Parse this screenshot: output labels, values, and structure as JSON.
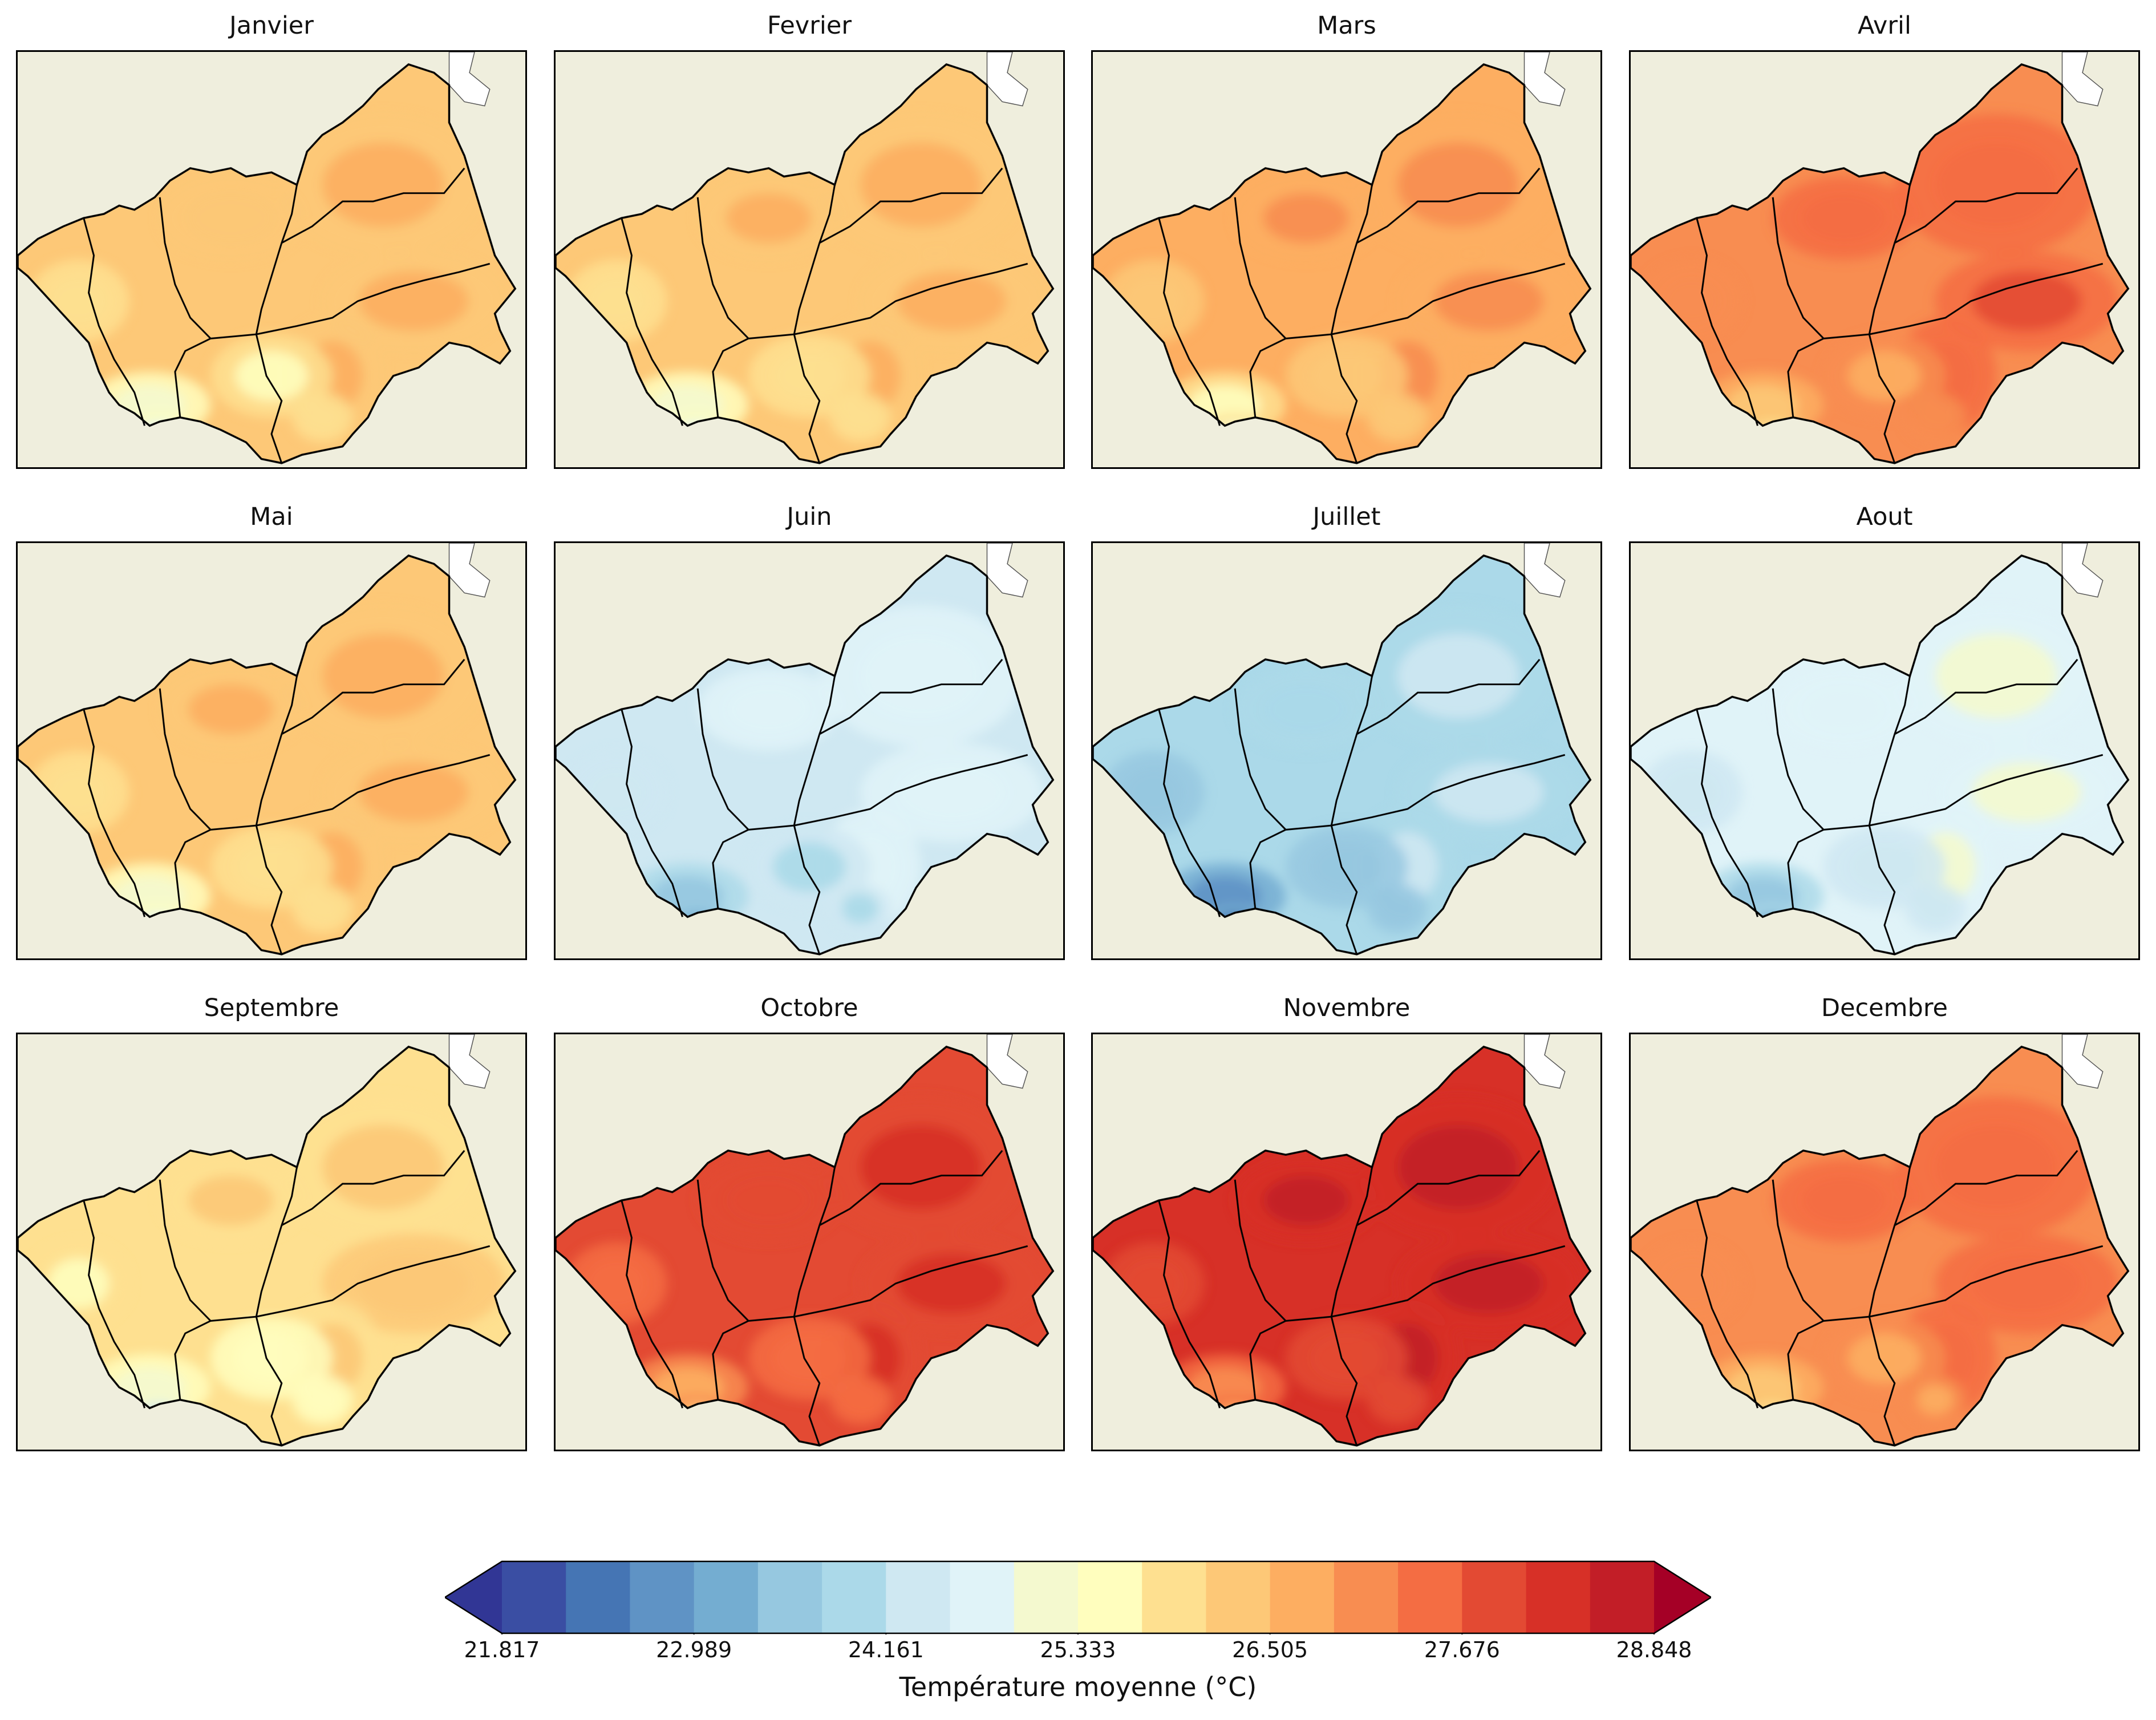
{
  "figure": {
    "colorbar_label": "Température moyenne (°C)",
    "colorbar_ticks": [
      "21.817",
      "22.989",
      "24.161",
      "25.333",
      "26.505",
      "27.676",
      "28.848"
    ],
    "colorbar_min": 21.817,
    "colorbar_max": 29.434,
    "colorbar_extend": "both",
    "colormap_name": "RdYlBu_r",
    "colormap": [
      "#313695",
      "#3a4ea3",
      "#4575b4",
      "#5f93c5",
      "#74add1",
      "#96c8e0",
      "#abd9e9",
      "#cfe8f2",
      "#e0f3f8",
      "#f4f9cf",
      "#fffebe",
      "#fee090",
      "#fdc877",
      "#fdae61",
      "#f88d51",
      "#f46d43",
      "#e34a33",
      "#d73027",
      "#c21e27",
      "#a50026"
    ],
    "map_background": "#efeedd",
    "panels": [
      {
        "title": "Janvier",
        "mean_level": 0.6
      },
      {
        "title": "Fevrier",
        "mean_level": 0.61
      },
      {
        "title": "Mars",
        "mean_level": 0.66
      },
      {
        "title": "Avril",
        "mean_level": 0.74
      },
      {
        "title": "Mai",
        "mean_level": 0.61
      },
      {
        "title": "Juin",
        "mean_level": 0.38
      },
      {
        "title": "Juillet",
        "mean_level": 0.3
      },
      {
        "title": "Aout",
        "mean_level": 0.4
      },
      {
        "title": "Septembre",
        "mean_level": 0.57
      },
      {
        "title": "Octobre",
        "mean_level": 0.8
      },
      {
        "title": "Novembre",
        "mean_level": 0.86
      },
      {
        "title": "Decembre",
        "mean_level": 0.73
      }
    ]
  }
}
